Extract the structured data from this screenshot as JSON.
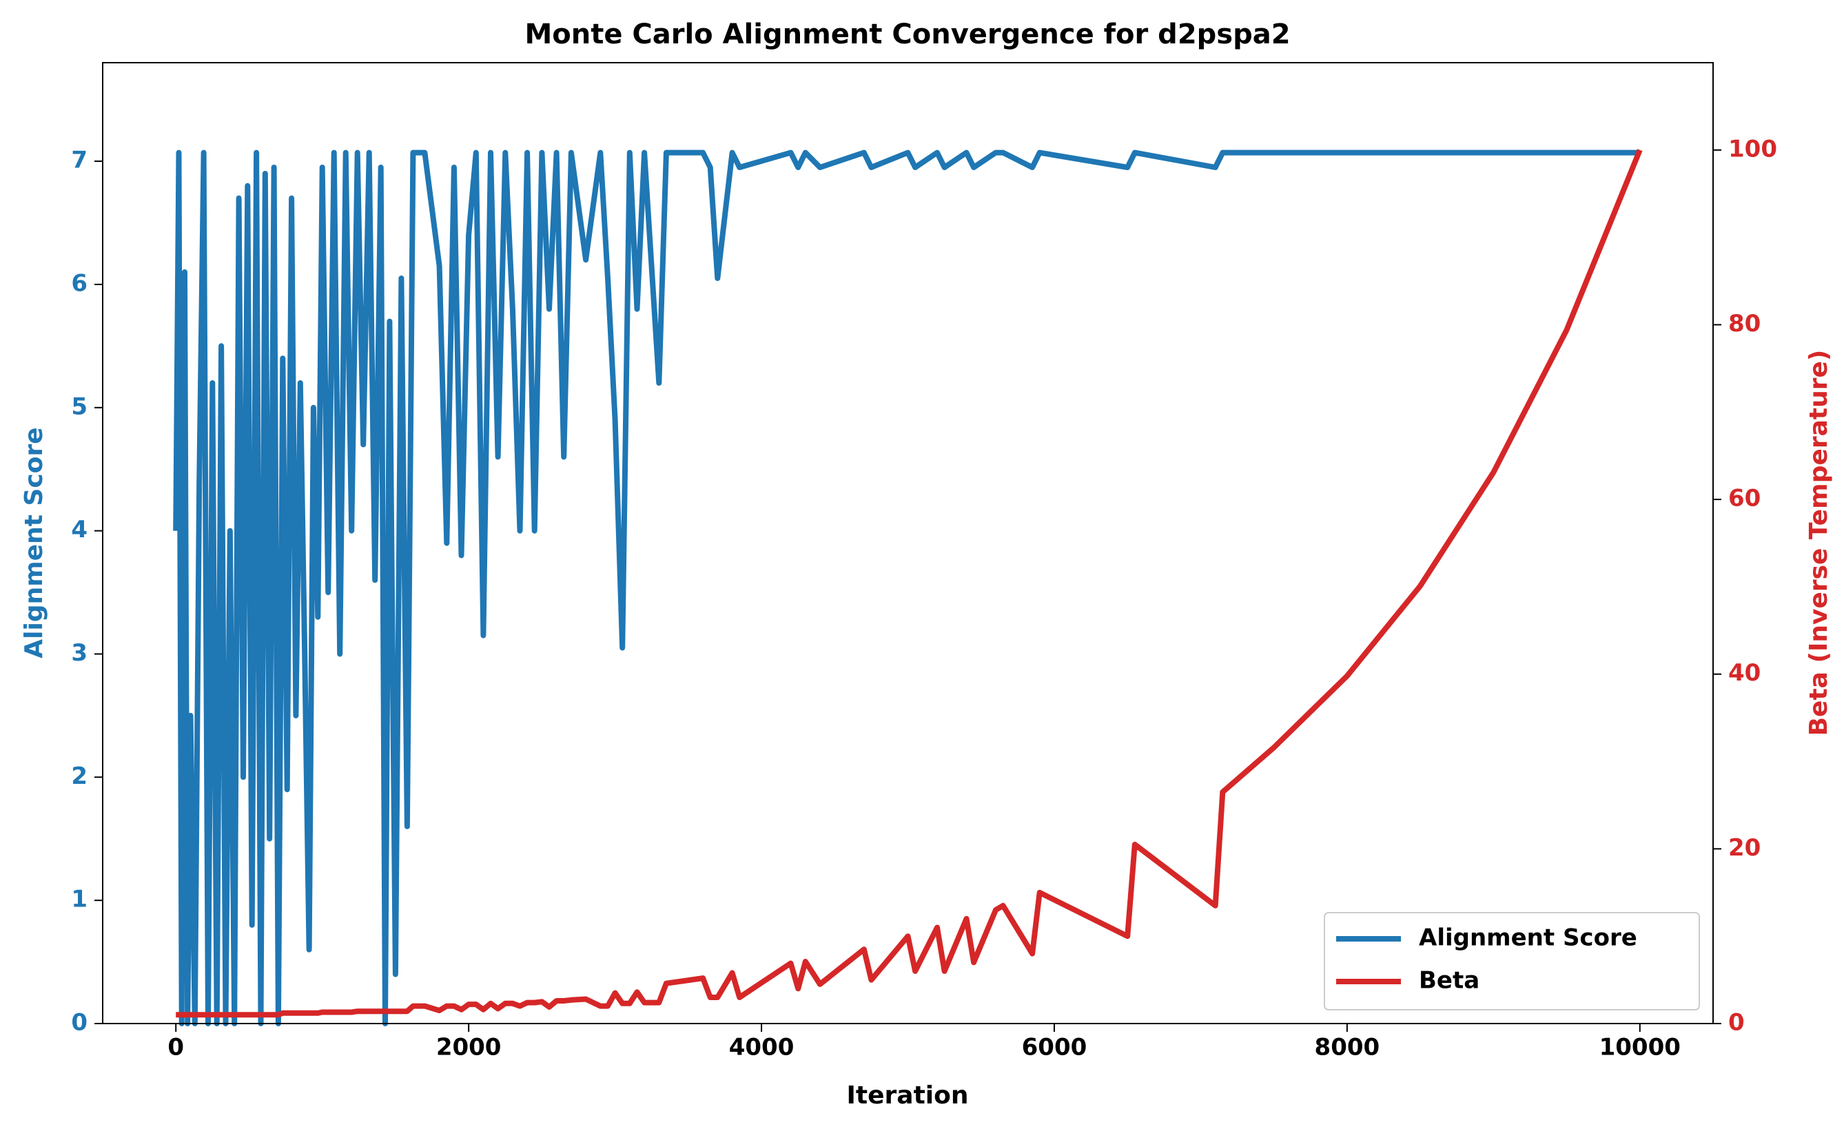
{
  "chart_data": {
    "type": "line",
    "title": "Monte Carlo Alignment Convergence for d2pspa2",
    "xlabel": "Iteration",
    "ylabel": "Alignment Score",
    "y2label": "Beta (Inverse Temperature)",
    "xlim": [
      -500,
      10500
    ],
    "xticks": [
      0,
      2000,
      4000,
      6000,
      8000,
      10000
    ],
    "ylim": [
      0,
      7.8
    ],
    "yticks": [
      0,
      1,
      2,
      3,
      4,
      5,
      6,
      7
    ],
    "y2lim": [
      0,
      110
    ],
    "y2ticks": [
      0,
      20,
      40,
      60,
      80,
      100
    ],
    "legend_loc": "lower right",
    "x": [
      0,
      20,
      40,
      60,
      80,
      100,
      130,
      160,
      190,
      220,
      250,
      280,
      310,
      340,
      370,
      400,
      430,
      460,
      490,
      520,
      550,
      580,
      610,
      640,
      670,
      700,
      730,
      760,
      790,
      820,
      850,
      880,
      910,
      940,
      970,
      1000,
      1040,
      1080,
      1120,
      1160,
      1200,
      1240,
      1280,
      1320,
      1360,
      1400,
      1430,
      1460,
      1500,
      1540,
      1580,
      1620,
      1700,
      1800,
      1850,
      1900,
      1950,
      2000,
      2050,
      2100,
      2150,
      2200,
      2250,
      2300,
      2350,
      2400,
      2450,
      2500,
      2550,
      2600,
      2650,
      2700,
      2800,
      2900,
      2950,
      3000,
      3050,
      3100,
      3150,
      3200,
      3300,
      3350,
      3600,
      3650,
      3700,
      3800,
      3850,
      4200,
      4250,
      4300,
      4400,
      4700,
      4750,
      5000,
      5050,
      5200,
      5250,
      5400,
      5450,
      5600,
      5650,
      5850,
      5900,
      6500,
      6550,
      7100,
      7150,
      7500,
      8000,
      8500,
      9000,
      9500,
      10000
    ],
    "series": [
      {
        "name": "Alignment Score",
        "color": "#1f77b4",
        "axis": "y",
        "values": [
          4.0,
          7.07,
          0,
          6.1,
          0,
          2.5,
          0,
          4.4,
          7.07,
          0,
          5.2,
          0,
          5.5,
          0,
          4.0,
          0,
          6.7,
          2.0,
          6.8,
          0.8,
          7.07,
          0,
          6.9,
          1.5,
          6.95,
          0,
          5.4,
          1.9,
          6.7,
          2.5,
          5.2,
          3.0,
          0.6,
          5.0,
          3.3,
          6.95,
          3.5,
          7.07,
          3.0,
          7.07,
          4.0,
          7.07,
          4.7,
          7.07,
          3.6,
          6.95,
          0,
          5.7,
          0.4,
          6.05,
          1.6,
          7.07,
          7.07,
          6.15,
          3.9,
          6.95,
          3.8,
          6.4,
          7.07,
          3.15,
          7.07,
          4.6,
          7.07,
          5.8,
          4.0,
          7.07,
          4.0,
          7.07,
          5.8,
          7.07,
          4.6,
          7.07,
          6.2,
          7.07,
          6.05,
          4.9,
          3.05,
          7.07,
          5.8,
          7.07,
          5.2,
          7.07,
          7.07,
          6.95,
          6.05,
          7.07,
          6.95,
          7.07,
          6.95,
          7.07,
          6.95,
          7.07,
          6.95,
          7.07,
          6.95,
          7.07,
          6.95,
          7.07,
          6.95,
          7.07,
          7.07,
          6.95,
          7.07,
          6.95,
          7.07,
          6.95,
          7.07,
          7.07,
          7.07,
          7.07,
          7.07,
          7.07,
          7.07
        ]
      },
      {
        "name": "Beta",
        "color": "#d62728",
        "axis": "y2",
        "values": [
          1,
          1,
          1,
          1,
          1,
          1,
          1,
          1,
          1,
          1,
          1,
          1,
          1,
          1,
          1,
          1,
          1,
          1,
          1,
          1,
          1,
          1,
          1,
          1,
          1,
          1,
          1.2,
          1.2,
          1.2,
          1.2,
          1.2,
          1.2,
          1.2,
          1.2,
          1.2,
          1.3,
          1.3,
          1.3,
          1.3,
          1.3,
          1.3,
          1.4,
          1.4,
          1.4,
          1.4,
          1.4,
          1.4,
          1.4,
          1.4,
          1.4,
          1.4,
          2.0,
          2.0,
          1.5,
          2.0,
          2.0,
          1.6,
          2.2,
          2.2,
          1.6,
          2.3,
          1.7,
          2.3,
          2.3,
          2.0,
          2.4,
          2.4,
          2.5,
          1.9,
          2.6,
          2.6,
          2.7,
          2.8,
          2.0,
          2.0,
          3.5,
          2.3,
          2.3,
          3.6,
          2.4,
          2.4,
          4.6,
          5.2,
          3.0,
          3.0,
          5.8,
          3.0,
          6.9,
          4.0,
          7.1,
          4.5,
          8.5,
          5.0,
          10.0,
          6.0,
          11,
          6.0,
          12,
          7.0,
          13,
          13.5,
          8.0,
          15,
          10,
          20.5,
          13.5,
          26.5,
          31.6,
          39.8,
          50.1,
          63.1,
          79.4,
          100
        ]
      }
    ]
  }
}
